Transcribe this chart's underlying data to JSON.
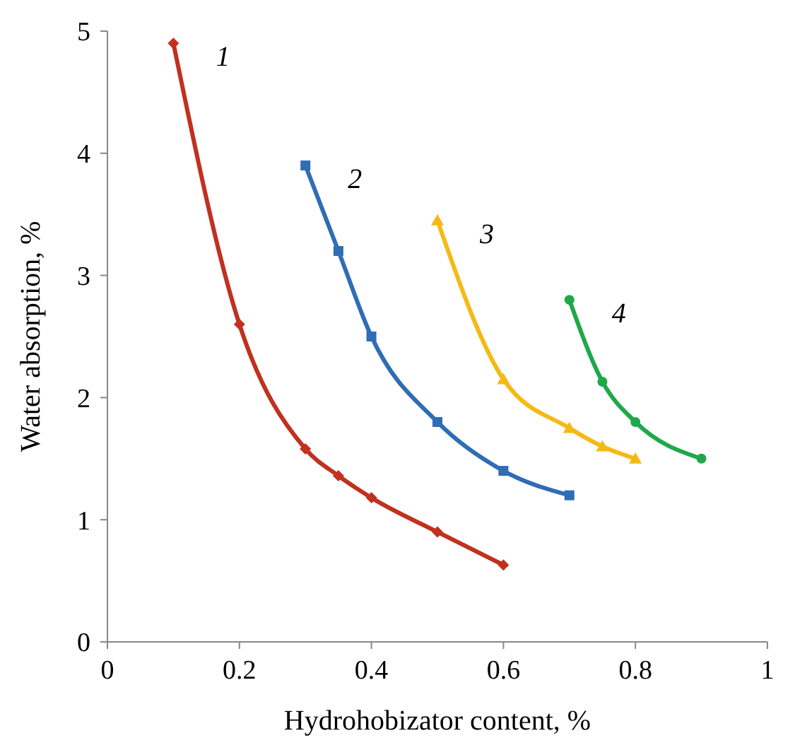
{
  "chart_data": {
    "type": "line",
    "xlabel": "Hydrohobizator content, %",
    "ylabel": "Water absorption, %",
    "xlim": [
      0,
      1
    ],
    "ylim": [
      0,
      5
    ],
    "xticks": [
      0,
      {
        "value": 0.2,
        "label": "0.2"
      },
      {
        "value": 0.4,
        "label": "0.4"
      },
      {
        "value": 0.6,
        "label": "0.6"
      },
      {
        "value": 0.8,
        "label": "0.8"
      },
      1
    ],
    "yticks": [
      0,
      1,
      2,
      3,
      4,
      5
    ],
    "grid": false,
    "line_style": "solid",
    "series": [
      {
        "name": "1",
        "color": "#c0311f",
        "marker": "diamond",
        "x": [
          0.1,
          0.2,
          0.3,
          0.35,
          0.4,
          0.5,
          0.6
        ],
        "values": [
          4.9,
          2.6,
          1.58,
          1.36,
          1.18,
          0.9,
          0.63
        ]
      },
      {
        "name": "2",
        "color": "#2f6db5",
        "marker": "square",
        "x": [
          0.3,
          0.35,
          0.4,
          0.5,
          0.6,
          0.7
        ],
        "values": [
          3.9,
          3.2,
          2.5,
          1.8,
          1.4,
          1.2
        ]
      },
      {
        "name": "3",
        "color": "#f6b914",
        "marker": "triangle",
        "x": [
          0.5,
          0.6,
          0.7,
          0.75,
          0.8
        ],
        "values": [
          3.45,
          2.15,
          1.75,
          1.6,
          1.5
        ]
      },
      {
        "name": "4",
        "color": "#1fa84a",
        "marker": "circle",
        "x": [
          0.7,
          0.75,
          0.8,
          0.9
        ],
        "values": [
          2.8,
          2.13,
          1.8,
          1.5
        ]
      }
    ]
  }
}
